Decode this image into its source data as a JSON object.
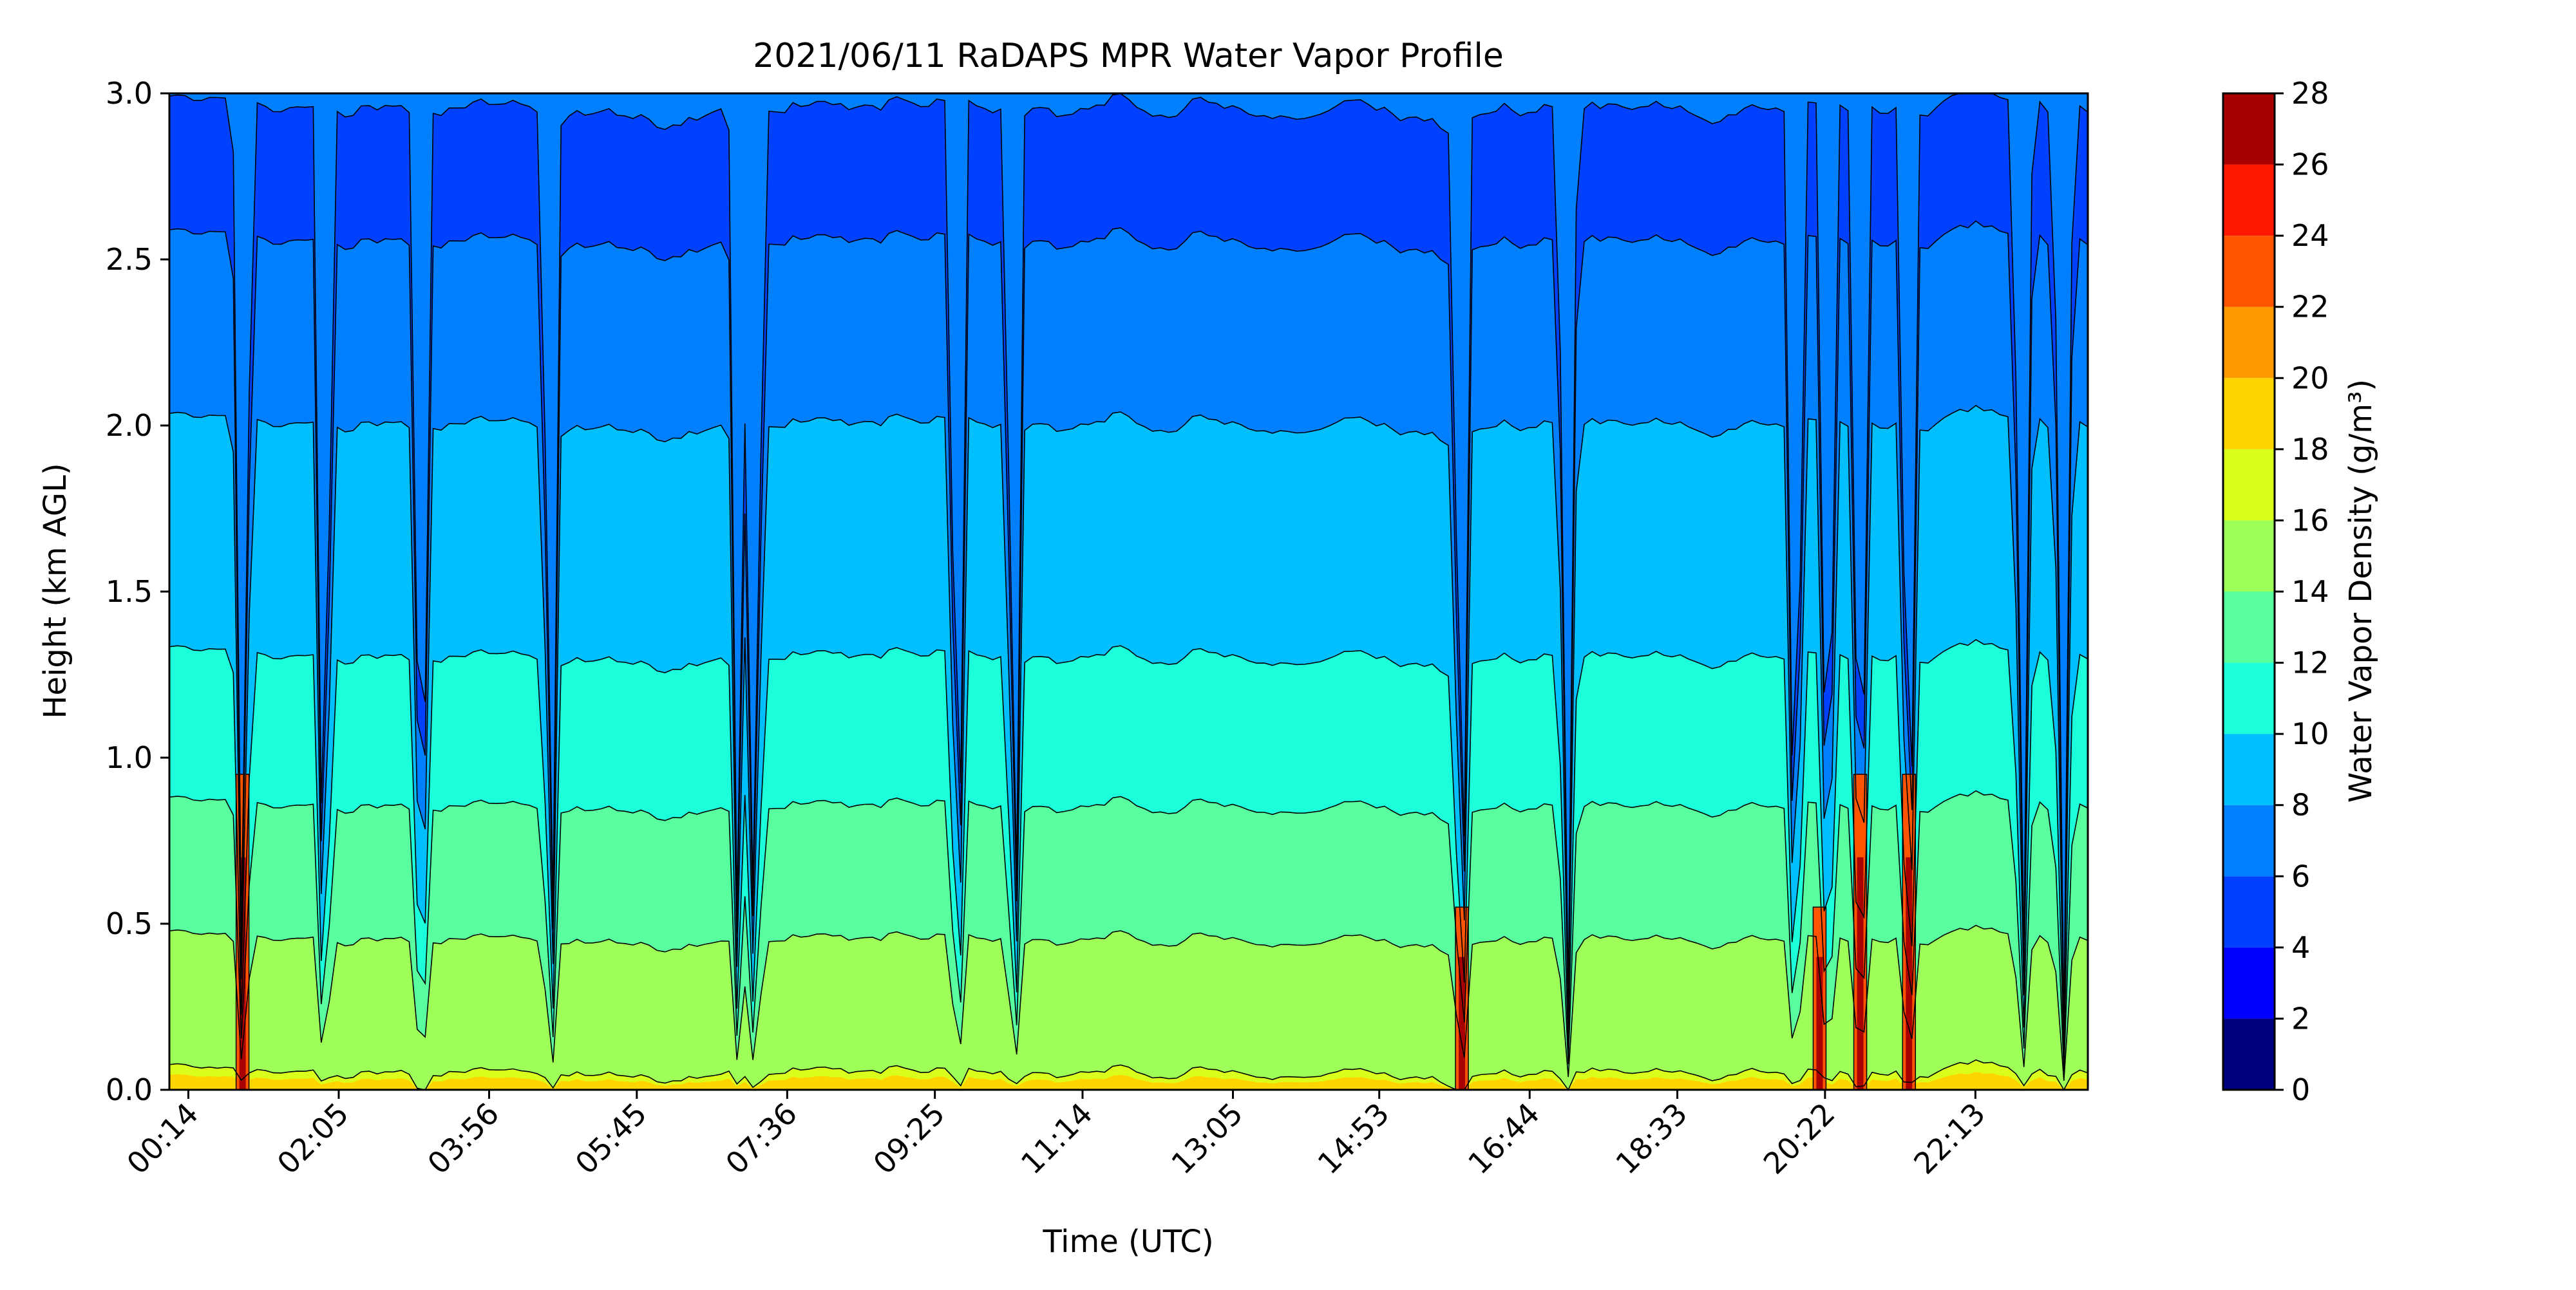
{
  "chart_data": {
    "type": "heatmap",
    "subtype": "filled-contour",
    "title": "2021/06/11 RaDAPS MPR Water Vapor Profile",
    "xlabel": "Time (UTC)",
    "ylabel": "Height (km AGL)",
    "colorbar_label": "Water Vapor Density (g/m³)",
    "x_tick_labels": [
      "00:14",
      "02:05",
      "03:56",
      "05:45",
      "07:36",
      "09:25",
      "11:14",
      "13:05",
      "14:53",
      "16:44",
      "18:33",
      "20:22",
      "22:13"
    ],
    "x_tick_hours": [
      0.2333,
      2.0833,
      3.9333,
      5.75,
      7.6,
      9.4167,
      11.2333,
      13.0833,
      14.8833,
      16.7333,
      18.55,
      20.3667,
      22.2167
    ],
    "xlim_hours": [
      0.0,
      23.6
    ],
    "ylim": [
      0.0,
      3.0
    ],
    "y_ticks": [
      0.0,
      0.5,
      1.0,
      1.5,
      2.0,
      2.5,
      3.0
    ],
    "y_tick_labels": [
      "0.0",
      "0.5",
      "1.0",
      "1.5",
      "2.0",
      "2.5",
      "3.0"
    ],
    "levels": [
      0,
      2,
      4,
      6,
      8,
      10,
      12,
      14,
      16,
      18,
      20,
      22,
      24,
      26,
      28
    ],
    "level_labels": [
      "0",
      "2",
      "4",
      "6",
      "8",
      "10",
      "12",
      "14",
      "16",
      "18",
      "20",
      "22",
      "24",
      "26",
      "28"
    ],
    "level_colors": [
      "#00007f",
      "#0000ff",
      "#0040ff",
      "#0080ff",
      "#00bfff",
      "#1cffdb",
      "#59ff9e",
      "#9eff59",
      "#dbff1c",
      "#ffd500",
      "#ff9900",
      "#ff5500",
      "#ff1800",
      "#a80000"
    ],
    "isopleth_heights_km": [
      {
        "level": 18,
        "height": 0.05
      },
      {
        "level": 16,
        "height": 0.45
      },
      {
        "level": 14,
        "height": 0.85
      },
      {
        "level": 12,
        "height": 1.3
      },
      {
        "level": 10,
        "height": 2.0
      },
      {
        "level": 8,
        "height": 2.55
      },
      {
        "level": 6,
        "height": 2.95
      }
    ],
    "dry_intrusions_hours": [
      0.9,
      1.9,
      3.1,
      4.7,
      7.0,
      7.2,
      9.7,
      10.4,
      15.9,
      17.2,
      20.0,
      20.4,
      20.8,
      21.4,
      22.8,
      23.3
    ],
    "moist_columns_hours": [
      0.9,
      15.9,
      21.4,
      20.3,
      20.8
    ]
  }
}
